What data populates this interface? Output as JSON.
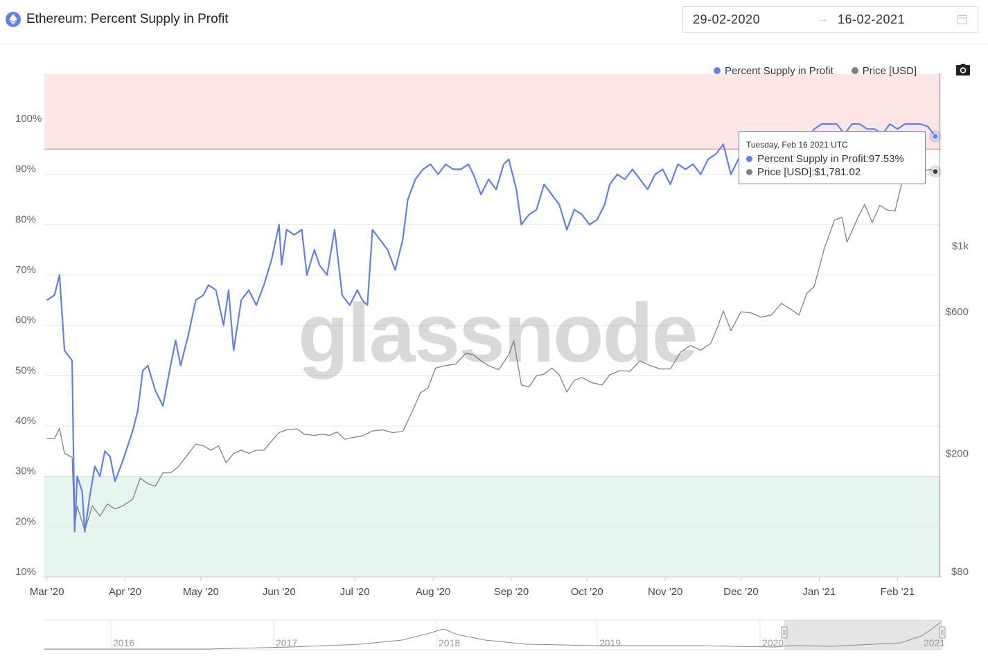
{
  "header": {
    "title": "Ethereum: Percent Supply in Profit",
    "date_start": "29-02-2020",
    "date_end": "16-02-2021",
    "range_arrow": "→",
    "asset_icon": "ethereum-icon"
  },
  "legend": {
    "items": [
      {
        "label": "Percent Supply in Profit",
        "color": "#627eea"
      },
      {
        "label": "Price [USD]",
        "color": "#808080"
      }
    ],
    "camera": "camera-icon"
  },
  "watermark": "glassnode",
  "tooltip": {
    "date": "Tuesday, Feb 16 2021 UTC",
    "row1_label": "Percent Supply in Profit: ",
    "row1_value": "97.53%",
    "row2_label": "Price [USD]: ",
    "row2_value": "$1,781.02"
  },
  "navigator": {
    "years": [
      "2016",
      "2017",
      "2018",
      "2019",
      "2020",
      "2021"
    ]
  },
  "chart_data": {
    "type": "line",
    "title": "Ethereum: Percent Supply in Profit",
    "x_range": [
      "2020-02-29",
      "2021-02-16"
    ],
    "x_ticks": [
      "Mar '20",
      "Apr '20",
      "May '20",
      "Jun '20",
      "Jul '20",
      "Aug '20",
      "Sep '20",
      "Oct '20",
      "Nov '20",
      "Dec '20",
      "Jan '21",
      "Feb '21"
    ],
    "y_left": {
      "ticks": [
        "10%",
        "20%",
        "30%",
        "40%",
        "50%",
        "60%",
        "70%",
        "80%",
        "90%",
        "100%"
      ],
      "range": [
        10,
        110
      ]
    },
    "y_right": {
      "ticks": [
        "$80",
        "$200",
        "$600",
        "$1k"
      ],
      "scale": "log"
    },
    "bands": [
      {
        "from": 95,
        "to": 110,
        "color": "#fde6e6",
        "line_color": "#f08a8a"
      },
      {
        "from": 10,
        "to": 30,
        "color": "#e6f6ef",
        "line_color": "#7bcf9f"
      }
    ],
    "grid": true,
    "legend_position": "top-right",
    "series": [
      {
        "name": "Percent Supply in Profit",
        "color": "#627eea",
        "axis": "left",
        "points": [
          [
            "2020-03-01",
            65
          ],
          [
            "2020-03-04",
            66
          ],
          [
            "2020-03-06",
            70
          ],
          [
            "2020-03-08",
            55
          ],
          [
            "2020-03-11",
            53
          ],
          [
            "2020-03-12",
            19
          ],
          [
            "2020-03-13",
            30
          ],
          [
            "2020-03-15",
            27
          ],
          [
            "2020-03-16",
            19
          ],
          [
            "2020-03-18",
            26
          ],
          [
            "2020-03-20",
            32
          ],
          [
            "2020-03-22",
            30
          ],
          [
            "2020-03-24",
            35
          ],
          [
            "2020-03-26",
            34
          ],
          [
            "2020-03-28",
            29
          ],
          [
            "2020-03-31",
            33
          ],
          [
            "2020-04-04",
            39
          ],
          [
            "2020-04-06",
            43
          ],
          [
            "2020-04-08",
            51
          ],
          [
            "2020-04-10",
            52
          ],
          [
            "2020-04-13",
            47
          ],
          [
            "2020-04-16",
            44
          ],
          [
            "2020-04-19",
            52
          ],
          [
            "2020-04-21",
            57
          ],
          [
            "2020-04-23",
            52
          ],
          [
            "2020-04-26",
            58
          ],
          [
            "2020-04-29",
            65
          ],
          [
            "2020-05-02",
            66
          ],
          [
            "2020-05-04",
            68
          ],
          [
            "2020-05-07",
            67
          ],
          [
            "2020-05-10",
            60
          ],
          [
            "2020-05-12",
            67
          ],
          [
            "2020-05-14",
            55
          ],
          [
            "2020-05-17",
            65
          ],
          [
            "2020-05-20",
            67
          ],
          [
            "2020-05-23",
            64
          ],
          [
            "2020-05-26",
            68
          ],
          [
            "2020-05-29",
            73
          ],
          [
            "2020-06-01",
            80
          ],
          [
            "2020-06-02",
            72
          ],
          [
            "2020-06-04",
            79
          ],
          [
            "2020-06-07",
            78
          ],
          [
            "2020-06-10",
            79
          ],
          [
            "2020-06-12",
            70
          ],
          [
            "2020-06-15",
            75
          ],
          [
            "2020-06-17",
            72
          ],
          [
            "2020-06-20",
            70
          ],
          [
            "2020-06-23",
            79
          ],
          [
            "2020-06-26",
            66
          ],
          [
            "2020-06-29",
            64
          ],
          [
            "2020-07-02",
            67
          ],
          [
            "2020-07-04",
            65
          ],
          [
            "2020-07-06",
            64
          ],
          [
            "2020-07-08",
            79
          ],
          [
            "2020-07-11",
            77
          ],
          [
            "2020-07-14",
            75
          ],
          [
            "2020-07-17",
            71
          ],
          [
            "2020-07-20",
            77
          ],
          [
            "2020-07-22",
            85
          ],
          [
            "2020-07-25",
            89
          ],
          [
            "2020-07-28",
            91
          ],
          [
            "2020-07-31",
            92
          ],
          [
            "2020-08-03",
            90
          ],
          [
            "2020-08-06",
            92
          ],
          [
            "2020-08-09",
            91
          ],
          [
            "2020-08-12",
            91
          ],
          [
            "2020-08-15",
            92
          ],
          [
            "2020-08-17",
            90
          ],
          [
            "2020-08-20",
            86
          ],
          [
            "2020-08-23",
            89
          ],
          [
            "2020-08-26",
            87
          ],
          [
            "2020-08-29",
            92
          ],
          [
            "2020-08-31",
            93
          ],
          [
            "2020-09-03",
            87
          ],
          [
            "2020-09-05",
            80
          ],
          [
            "2020-09-08",
            82
          ],
          [
            "2020-09-11",
            83
          ],
          [
            "2020-09-14",
            88
          ],
          [
            "2020-09-17",
            86
          ],
          [
            "2020-09-20",
            84
          ],
          [
            "2020-09-23",
            79
          ],
          [
            "2020-09-26",
            83
          ],
          [
            "2020-09-29",
            82
          ],
          [
            "2020-10-02",
            80
          ],
          [
            "2020-10-05",
            81
          ],
          [
            "2020-10-08",
            84
          ],
          [
            "2020-10-10",
            88
          ],
          [
            "2020-10-13",
            90
          ],
          [
            "2020-10-16",
            89
          ],
          [
            "2020-10-19",
            91
          ],
          [
            "2020-10-22",
            89
          ],
          [
            "2020-10-25",
            87
          ],
          [
            "2020-10-28",
            90
          ],
          [
            "2020-10-31",
            91
          ],
          [
            "2020-11-03",
            88
          ],
          [
            "2020-11-06",
            92
          ],
          [
            "2020-11-09",
            91
          ],
          [
            "2020-11-12",
            92
          ],
          [
            "2020-11-15",
            90
          ],
          [
            "2020-11-18",
            93
          ],
          [
            "2020-11-21",
            94
          ],
          [
            "2020-11-24",
            96
          ],
          [
            "2020-11-27",
            90
          ],
          [
            "2020-11-30",
            93
          ],
          [
            "2020-12-03",
            95
          ],
          [
            "2020-12-06",
            96
          ],
          [
            "2020-12-09",
            92
          ],
          [
            "2020-12-12",
            93
          ],
          [
            "2020-12-15",
            94
          ],
          [
            "2020-12-18",
            96
          ],
          [
            "2020-12-21",
            95
          ],
          [
            "2020-12-24",
            92
          ],
          [
            "2020-12-27",
            97
          ],
          [
            "2020-12-30",
            99
          ],
          [
            "2021-01-02",
            100
          ],
          [
            "2021-01-05",
            100
          ],
          [
            "2021-01-08",
            100
          ],
          [
            "2021-01-11",
            98
          ],
          [
            "2021-01-14",
            100
          ],
          [
            "2021-01-17",
            100
          ],
          [
            "2021-01-20",
            99
          ],
          [
            "2021-01-23",
            99
          ],
          [
            "2021-01-26",
            98
          ],
          [
            "2021-01-29",
            100
          ],
          [
            "2021-02-01",
            99
          ],
          [
            "2021-02-04",
            100
          ],
          [
            "2021-02-07",
            100
          ],
          [
            "2021-02-10",
            100
          ],
          [
            "2021-02-13",
            99.5
          ],
          [
            "2021-02-16",
            97.53
          ]
        ]
      },
      {
        "name": "Price [USD]",
        "color": "#808080",
        "axis": "right",
        "points": [
          [
            "2020-03-01",
            225
          ],
          [
            "2020-03-04",
            224
          ],
          [
            "2020-03-06",
            243
          ],
          [
            "2020-03-08",
            200
          ],
          [
            "2020-03-11",
            194
          ],
          [
            "2020-03-12",
            112
          ],
          [
            "2020-03-13",
            133
          ],
          [
            "2020-03-16",
            110
          ],
          [
            "2020-03-19",
            133
          ],
          [
            "2020-03-22",
            123
          ],
          [
            "2020-03-25",
            135
          ],
          [
            "2020-03-28",
            130
          ],
          [
            "2020-03-31",
            133
          ],
          [
            "2020-04-04",
            140
          ],
          [
            "2020-04-07",
            165
          ],
          [
            "2020-04-10",
            158
          ],
          [
            "2020-04-13",
            155
          ],
          [
            "2020-04-16",
            172
          ],
          [
            "2020-04-19",
            172
          ],
          [
            "2020-04-22",
            180
          ],
          [
            "2020-04-25",
            194
          ],
          [
            "2020-04-29",
            215
          ],
          [
            "2020-05-02",
            212
          ],
          [
            "2020-05-05",
            205
          ],
          [
            "2020-05-08",
            212
          ],
          [
            "2020-05-11",
            186
          ],
          [
            "2020-05-14",
            200
          ],
          [
            "2020-05-17",
            205
          ],
          [
            "2020-05-20",
            200
          ],
          [
            "2020-05-23",
            205
          ],
          [
            "2020-05-26",
            205
          ],
          [
            "2020-05-29",
            220
          ],
          [
            "2020-06-01",
            235
          ],
          [
            "2020-06-04",
            240
          ],
          [
            "2020-06-08",
            242
          ],
          [
            "2020-06-11",
            232
          ],
          [
            "2020-06-15",
            230
          ],
          [
            "2020-06-18",
            232
          ],
          [
            "2020-06-21",
            230
          ],
          [
            "2020-06-24",
            236
          ],
          [
            "2020-06-27",
            223
          ],
          [
            "2020-06-30",
            226
          ],
          [
            "2020-07-04",
            229
          ],
          [
            "2020-07-08",
            238
          ],
          [
            "2020-07-12",
            240
          ],
          [
            "2020-07-16",
            235
          ],
          [
            "2020-07-20",
            237
          ],
          [
            "2020-07-24",
            280
          ],
          [
            "2020-07-27",
            320
          ],
          [
            "2020-07-30",
            332
          ],
          [
            "2020-08-02",
            388
          ],
          [
            "2020-08-06",
            395
          ],
          [
            "2020-08-10",
            400
          ],
          [
            "2020-08-14",
            435
          ],
          [
            "2020-08-17",
            430
          ],
          [
            "2020-08-20",
            410
          ],
          [
            "2020-08-23",
            395
          ],
          [
            "2020-08-27",
            383
          ],
          [
            "2020-08-31",
            430
          ],
          [
            "2020-09-02",
            480
          ],
          [
            "2020-09-05",
            340
          ],
          [
            "2020-09-08",
            335
          ],
          [
            "2020-09-11",
            365
          ],
          [
            "2020-09-14",
            370
          ],
          [
            "2020-09-17",
            388
          ],
          [
            "2020-09-20",
            368
          ],
          [
            "2020-09-23",
            322
          ],
          [
            "2020-09-26",
            353
          ],
          [
            "2020-09-29",
            360
          ],
          [
            "2020-10-03",
            346
          ],
          [
            "2020-10-07",
            340
          ],
          [
            "2020-10-10",
            368
          ],
          [
            "2020-10-14",
            380
          ],
          [
            "2020-10-18",
            378
          ],
          [
            "2020-10-22",
            410
          ],
          [
            "2020-10-26",
            395
          ],
          [
            "2020-10-30",
            385
          ],
          [
            "2020-11-03",
            385
          ],
          [
            "2020-11-07",
            438
          ],
          [
            "2020-11-11",
            462
          ],
          [
            "2020-11-15",
            445
          ],
          [
            "2020-11-19",
            470
          ],
          [
            "2020-11-22",
            540
          ],
          [
            "2020-11-24",
            604
          ],
          [
            "2020-11-27",
            518
          ],
          [
            "2020-12-01",
            600
          ],
          [
            "2020-12-05",
            595
          ],
          [
            "2020-12-09",
            575
          ],
          [
            "2020-12-13",
            585
          ],
          [
            "2020-12-17",
            640
          ],
          [
            "2020-12-21",
            610
          ],
          [
            "2020-12-24",
            585
          ],
          [
            "2020-12-27",
            690
          ],
          [
            "2020-12-30",
            730
          ],
          [
            "2021-01-03",
            980
          ],
          [
            "2021-01-07",
            1220
          ],
          [
            "2021-01-10",
            1250
          ],
          [
            "2021-01-12",
            1030
          ],
          [
            "2021-01-16",
            1230
          ],
          [
            "2021-01-19",
            1380
          ],
          [
            "2021-01-22",
            1200
          ],
          [
            "2021-01-25",
            1370
          ],
          [
            "2021-01-28",
            1320
          ],
          [
            "2021-01-31",
            1310
          ],
          [
            "2021-02-03",
            1660
          ],
          [
            "2021-02-06",
            1720
          ],
          [
            "2021-02-09",
            1760
          ],
          [
            "2021-02-11",
            1790
          ],
          [
            "2021-02-14",
            1810
          ],
          [
            "2021-02-16",
            1781.02
          ]
        ]
      }
    ]
  }
}
